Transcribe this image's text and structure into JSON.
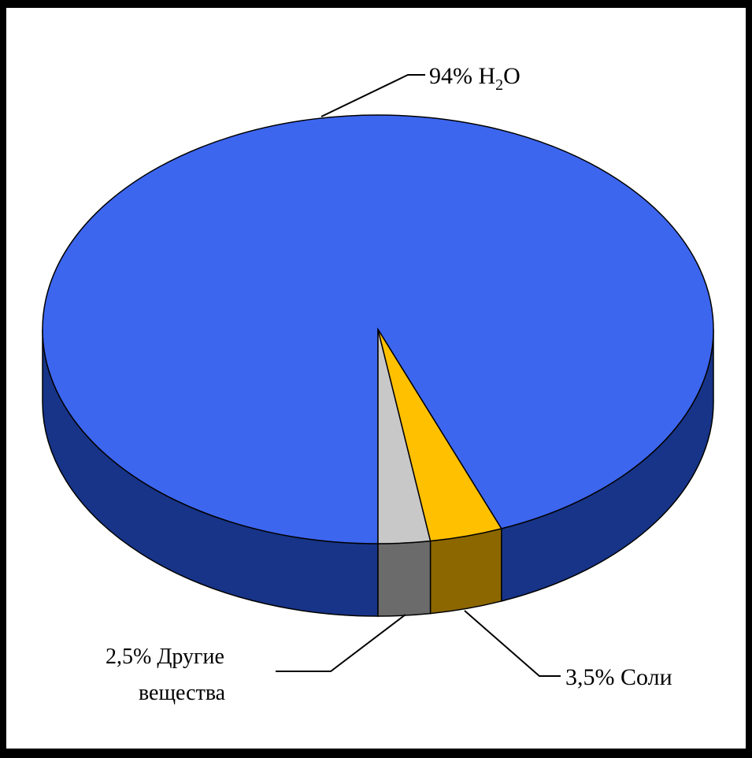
{
  "chart_data": {
    "type": "pie",
    "style": "3d",
    "title": "",
    "slices": [
      {
        "label": "H2O",
        "value": 94,
        "percent_label": "94%",
        "color_top": "#3d66ef",
        "color_side": "#173488"
      },
      {
        "label": "Другие вещества",
        "value": 2.5,
        "percent_label": "2,5%",
        "color_top": "#c8c8c8",
        "color_side": "#6b6b6b"
      },
      {
        "label": "Соли",
        "value": 3.5,
        "percent_label": "3,5%",
        "color_top": "#ffc000",
        "color_side": "#8c6700"
      }
    ]
  },
  "labels": {
    "h2o_prefix": "94% H",
    "h2o_sub": "2",
    "h2o_suffix": "O",
    "other_line1": "2,5%  Другие",
    "other_line2": "вещества",
    "salts": "3,5% Соли"
  },
  "colors": {
    "background": "#ffffff",
    "frame": "#000000",
    "outline": "#000000"
  }
}
